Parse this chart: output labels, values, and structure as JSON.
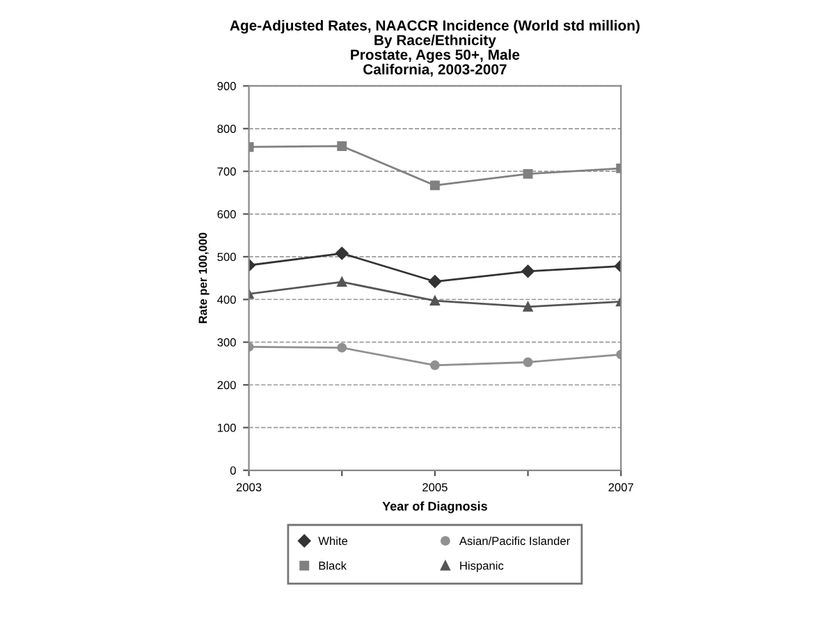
{
  "chart_data": {
    "type": "line",
    "title": "Age-Adjusted Rates, NAACCR Incidence (World std million)\nBy Race/Ethnicity\nProstate, Ages 50+, Male\nCalifornia, 2003-2007",
    "xlabel": "Year of Diagnosis",
    "ylabel": "Rate per 100,000",
    "x": [
      2003,
      2004,
      2005,
      2006,
      2007
    ],
    "series": [
      {
        "name": "White",
        "color": "#333333",
        "marker": "diamond",
        "values": [
          480,
          508,
          442,
          466,
          478
        ]
      },
      {
        "name": "Black",
        "color": "#808080",
        "marker": "square",
        "values": [
          757,
          759,
          667,
          694,
          707
        ]
      },
      {
        "name": "Asian/Pacific Islander",
        "color": "#909090",
        "marker": "circle",
        "values": [
          289,
          287,
          246,
          253,
          271
        ]
      },
      {
        "name": "Hispanic",
        "color": "#555555",
        "marker": "triangle",
        "values": [
          413,
          441,
          397,
          383,
          395
        ]
      }
    ],
    "xlim": [
      2003,
      2007
    ],
    "xticks": [
      2003,
      {
        "value": 2004,
        "label": null
      },
      2005,
      {
        "value": 2006,
        "label": null
      },
      2007
    ],
    "ylim": [
      0,
      900
    ],
    "yticks": [
      0,
      100,
      200,
      300,
      400,
      500,
      600,
      700,
      800,
      900
    ],
    "grid": "y",
    "legend": "bottom",
    "line_style": "solid"
  }
}
